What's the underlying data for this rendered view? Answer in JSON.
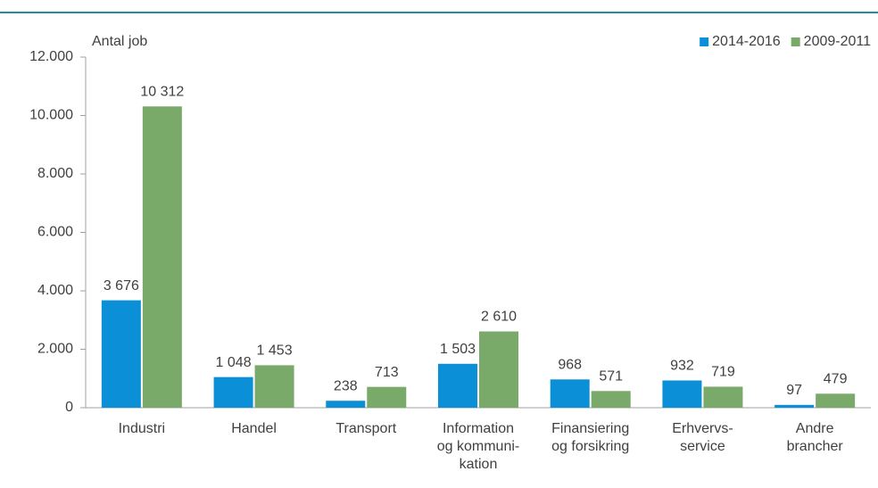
{
  "chart_data": {
    "type": "bar",
    "y_label": "Antal job",
    "categories": [
      "Industri",
      "Handel",
      "Transport",
      "Information\nog kommuni-\nkation",
      "Finansiering\nog forsikring",
      "Erhvervs-\nservice",
      "Andre\nbrancher"
    ],
    "series": [
      {
        "name": "2014-2016",
        "color": "#0b8fd6",
        "values": [
          3676,
          1048,
          238,
          1503,
          968,
          932,
          97
        ],
        "value_labels": [
          "3 676",
          "1 048",
          "238",
          "1 503",
          "968",
          "932",
          "97"
        ]
      },
      {
        "name": "2009-2011",
        "color": "#79aa69",
        "values": [
          10312,
          1453,
          713,
          2610,
          571,
          719,
          479
        ],
        "value_labels": [
          "10 312",
          "1 453",
          "713",
          "2 610",
          "571",
          "719",
          "479"
        ]
      }
    ],
    "ylim": [
      0,
      12000
    ],
    "yticks": [
      0,
      {
        "value": 2000,
        "label": "2.000"
      },
      {
        "value": 4000,
        "label": "4.000"
      },
      {
        "value": 6000,
        "label": "6.000"
      },
      {
        "value": 8000,
        "label": "8.000"
      },
      {
        "value": 10000,
        "label": "10.000"
      },
      {
        "value": 12000,
        "label": "12.000"
      }
    ],
    "grid": false,
    "legend": "top-right"
  }
}
